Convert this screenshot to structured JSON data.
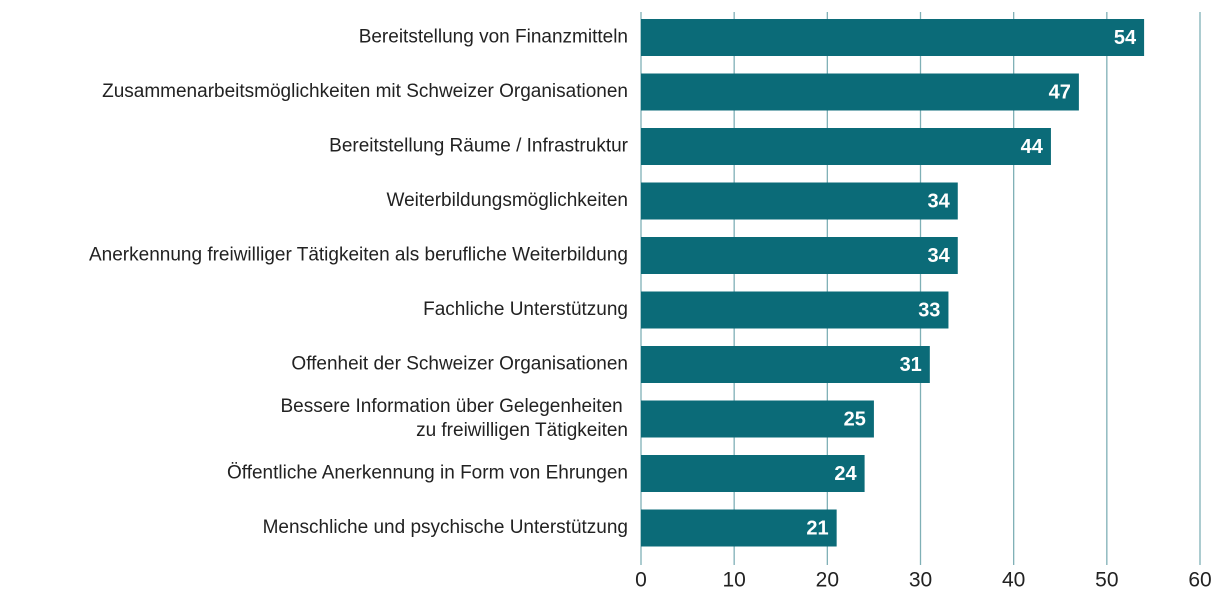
{
  "chart_data": {
    "type": "bar",
    "orientation": "horizontal",
    "categories": [
      "Bereitstellung von Finanzmitteln",
      "Zusammenarbeitsmöglichkeiten mit Schweizer Organisationen",
      "Bereitstellung Räume / Infrastruktur",
      "Weiterbildungsmöglichkeiten",
      "Anerkennung freiwilliger Tätigkeiten als berufliche Weiterbildung",
      "Fachliche Unterstützung",
      "Offenheit der Schweizer Organisationen",
      "Bessere Information über Gelegenheiten \nzu freiwilligen Tätigkeiten",
      "Öffentliche Anerkennung in Form von Ehrungen",
      "Menschliche und psychische Unterstützung"
    ],
    "values": [
      54,
      47,
      44,
      34,
      34,
      33,
      31,
      25,
      24,
      21
    ],
    "color": "#0b6b78",
    "xlim": [
      0,
      60
    ],
    "xticks": [
      0,
      10,
      20,
      30,
      40,
      50,
      60
    ],
    "grid": true
  }
}
